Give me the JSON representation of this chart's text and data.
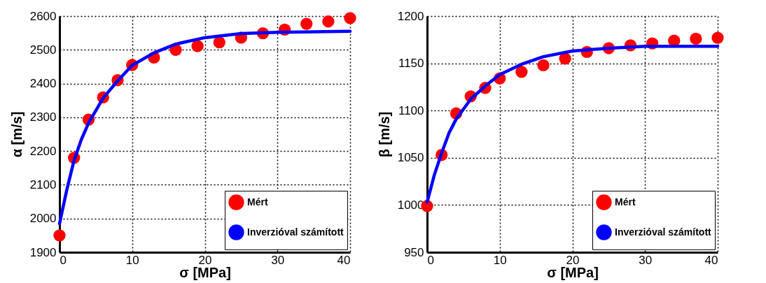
{
  "chart_data": [
    {
      "type": "scatter",
      "xlabel": "σ [MPa]",
      "ylabel": "α [m/s]",
      "xlim": [
        0,
        40
      ],
      "ylim": [
        1900,
        2600
      ],
      "xticks": [
        0,
        10,
        20,
        30,
        40
      ],
      "yticks": [
        1900,
        2000,
        2100,
        2200,
        2300,
        2400,
        2500,
        2600
      ],
      "grid": true,
      "legend": "bottom right",
      "series": [
        {
          "name": "Mért",
          "color": "#ff0000",
          "marker": "circle",
          "x": [
            0,
            2,
            4,
            6,
            8,
            10,
            13,
            16,
            19,
            22,
            25,
            28,
            31,
            34,
            37,
            40
          ],
          "values": [
            1950,
            2180,
            2293,
            2359,
            2410,
            2455,
            2477,
            2500,
            2511,
            2522,
            2536,
            2549,
            2560,
            2577,
            2584,
            2594
          ]
        },
        {
          "name": "Inverzióval számított",
          "type": "line",
          "color": "#0000ff",
          "marker": "none",
          "line_style": "solid",
          "x": [
            0,
            1,
            2,
            3,
            4,
            6,
            8,
            10,
            13,
            16,
            20,
            25,
            30,
            40
          ],
          "values": [
            1985,
            2085,
            2172,
            2234,
            2283,
            2357,
            2408,
            2454,
            2491,
            2517,
            2536,
            2548,
            2552,
            2555
          ]
        }
      ]
    },
    {
      "type": "scatter",
      "xlabel": "σ [MPa]",
      "ylabel": "β [m/s]",
      "xlim": [
        0,
        40
      ],
      "ylim": [
        950,
        1200
      ],
      "xticks": [
        0,
        10,
        20,
        30,
        40
      ],
      "yticks": [
        950,
        1000,
        1050,
        1100,
        1150,
        1200
      ],
      "grid": true,
      "legend": "bottom right",
      "series": [
        {
          "name": "Mért",
          "color": "#ff0000",
          "marker": "circle",
          "x": [
            0,
            2,
            4,
            6,
            8,
            10,
            13,
            16,
            19,
            22,
            25,
            28,
            31,
            34,
            37,
            40
          ],
          "values": [
            999,
            1053,
            1097,
            1115,
            1124,
            1134,
            1141,
            1148,
            1155,
            1162,
            1166,
            1169,
            1171,
            1174,
            1176,
            1177
          ]
        },
        {
          "name": "Inverzióval számított",
          "type": "line",
          "color": "#0000ff",
          "marker": "none",
          "line_style": "solid",
          "x": [
            0,
            1,
            2,
            3,
            4,
            6,
            8,
            10,
            13,
            16,
            20,
            25,
            30,
            40
          ],
          "values": [
            1003,
            1032,
            1055,
            1076,
            1091,
            1112,
            1126,
            1138,
            1149,
            1157,
            1163,
            1166,
            1168,
            1168
          ]
        }
      ]
    }
  ]
}
